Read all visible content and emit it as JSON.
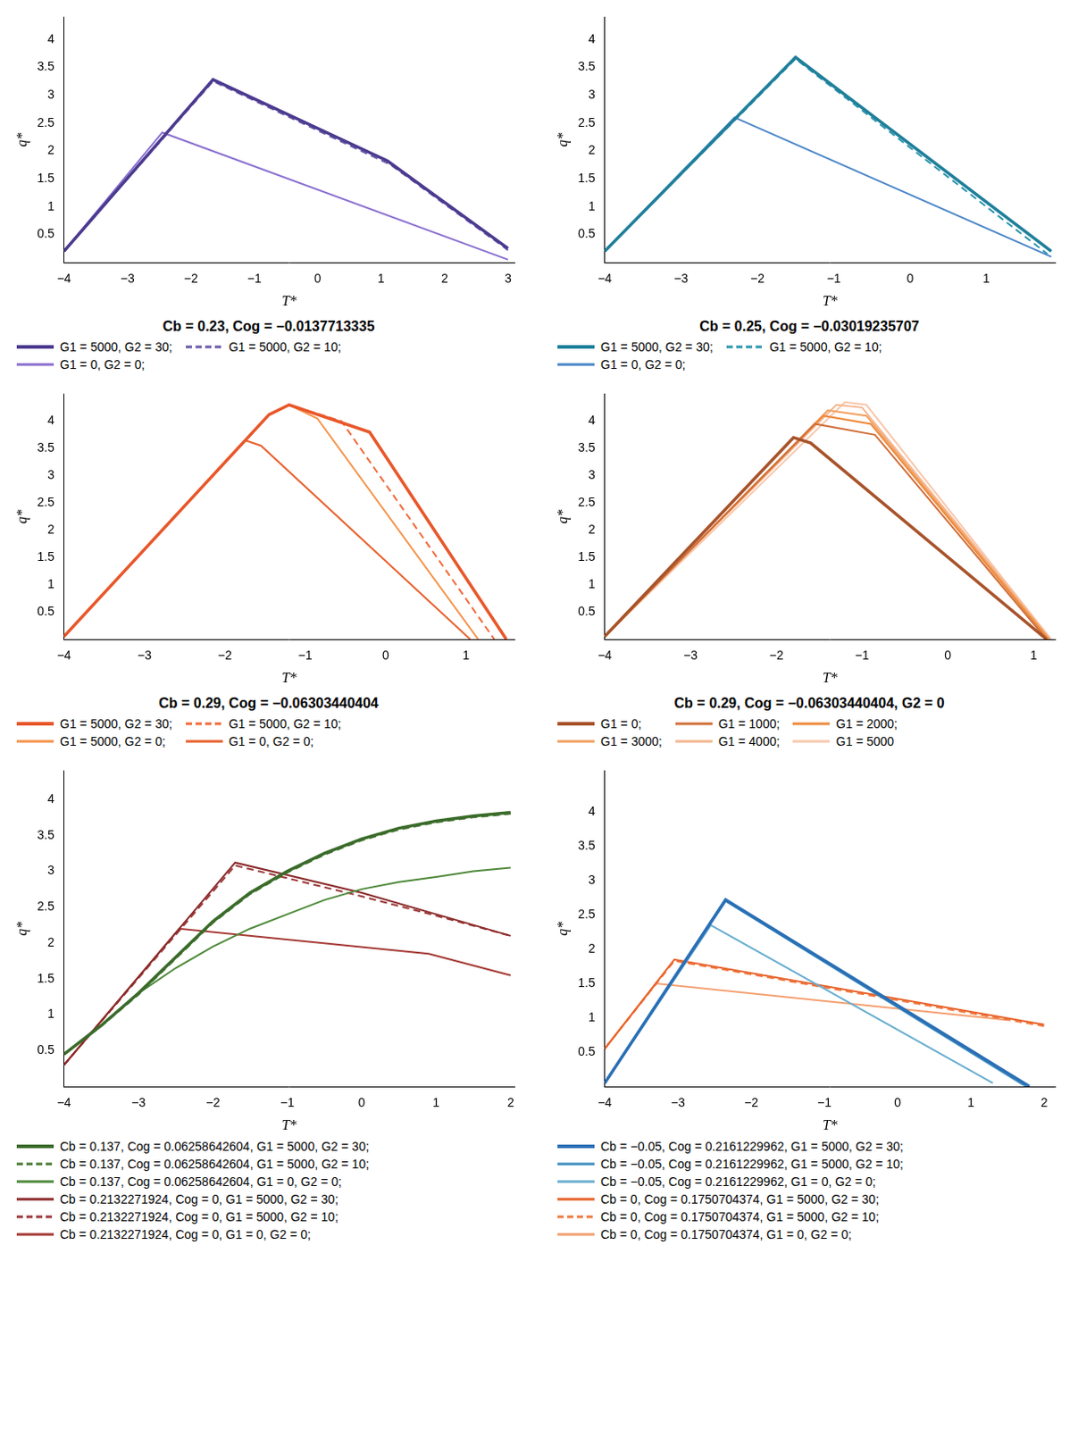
{
  "chart_data": [
    {
      "type": "line",
      "title": "Cb = 0.23, Cog = −0.0137713335",
      "x_label": "T*",
      "y_label": "q*",
      "xlim": [
        -4,
        3.1
      ],
      "xticks": [
        {
          "value": -4,
          "label": "−4"
        },
        {
          "value": -3,
          "label": "−3"
        },
        {
          "value": -2,
          "label": "−2"
        },
        {
          "value": -1,
          "label": "−1"
        },
        0,
        1,
        2,
        3
      ],
      "ylim": [
        0,
        4.4
      ],
      "yticks": [
        0.5,
        1,
        1.5,
        2,
        2.5,
        3,
        3.5,
        4
      ],
      "grid": false,
      "legend": "bottom",
      "series": [
        {
          "name": "G1 = 5000, G2 = 30;",
          "color": "#4b3a8f",
          "line_style": "solid",
          "x": [
            -4,
            -1.65,
            1.1,
            3
          ],
          "values": [
            0.2,
            3.28,
            1.82,
            0.25
          ]
        },
        {
          "name": "G1 = 5000, G2 = 10;",
          "color": "#6a58a8",
          "line_style": "dashed",
          "x": [
            -4,
            -1.65,
            1.15,
            3
          ],
          "values": [
            0.2,
            3.25,
            1.75,
            0.22
          ]
        },
        {
          "name": "G1 = 0, G2 = 0;",
          "color": "#8a6fd0",
          "line_style": "solid",
          "x": [
            -4,
            -2.45,
            3
          ],
          "values": [
            0.2,
            2.33,
            0.05
          ]
        }
      ]
    },
    {
      "type": "line",
      "title": "Cb = 0.25, Cog = −0.03019235707",
      "x_label": "T*",
      "y_label": "q*",
      "xlim": [
        -4,
        1.9
      ],
      "xticks": [
        {
          "value": -4,
          "label": "−4"
        },
        {
          "value": -3,
          "label": "−3"
        },
        {
          "value": -2,
          "label": "−2"
        },
        {
          "value": -1,
          "label": "−1"
        },
        0,
        1
      ],
      "ylim": [
        0,
        4.4
      ],
      "yticks": [
        0.5,
        1,
        1.5,
        2,
        2.5,
        3,
        3.5,
        4
      ],
      "grid": false,
      "legend": "bottom",
      "series": [
        {
          "name": "G1 = 5000, G2 = 30;",
          "color": "#1f7f9a",
          "line_style": "solid",
          "x": [
            -4,
            -1.5,
            1.85
          ],
          "values": [
            0.2,
            3.68,
            0.2
          ]
        },
        {
          "name": "G1 = 5000, G2 = 10;",
          "color": "#2a95ad",
          "line_style": "dashed",
          "x": [
            -4,
            -1.5,
            1.8
          ],
          "values": [
            0.2,
            3.65,
            0.15
          ]
        },
        {
          "name": "G1 = 0, G2 = 0;",
          "color": "#4a86c8",
          "line_style": "solid",
          "x": [
            -4,
            -2.3,
            1.85
          ],
          "values": [
            0.2,
            2.6,
            0.1
          ]
        }
      ]
    },
    {
      "type": "line",
      "title": "Cb = 0.29, Cog = −0.06303440404",
      "x_label": "T*",
      "y_label": "q*",
      "xlim": [
        -4,
        1.6
      ],
      "xticks": [
        {
          "value": -4,
          "label": "−4"
        },
        {
          "value": -3,
          "label": "−3"
        },
        {
          "value": -2,
          "label": "−2"
        },
        {
          "value": -1,
          "label": "−1"
        },
        0,
        1
      ],
      "ylim": [
        0,
        4.5
      ],
      "yticks": [
        0.5,
        1,
        1.5,
        2,
        2.5,
        3,
        3.5,
        4
      ],
      "grid": false,
      "legend": "bottom",
      "series": [
        {
          "name": "G1 = 5000, G2 = 30;",
          "color": "#e8572a",
          "line_style": "solid",
          "x": [
            -4,
            -1.45,
            -1.2,
            -0.2,
            1.5
          ],
          "values": [
            0.05,
            4.12,
            4.3,
            3.8,
            0
          ]
        },
        {
          "name": "G1 = 5000, G2 = 10;",
          "color": "#f06a3a",
          "line_style": "dashed",
          "x": [
            -4,
            -1.45,
            -1.2,
            -0.55,
            1.35
          ],
          "values": [
            0.05,
            4.12,
            4.3,
            4.0,
            0
          ]
        },
        {
          "name": "G1 = 5000, G2 = 0;",
          "color": "#f5934a",
          "line_style": "solid",
          "x": [
            -4,
            -1.45,
            -1.2,
            -0.85,
            1.15
          ],
          "values": [
            0.05,
            4.12,
            4.3,
            4.05,
            0
          ]
        },
        {
          "name": "G1 = 0, G2 = 0;",
          "color": "#e8622f",
          "line_style": "solid",
          "x": [
            -4,
            -1.75,
            -1.55,
            1.05
          ],
          "values": [
            0.05,
            3.65,
            3.55,
            0
          ]
        }
      ]
    },
    {
      "type": "line",
      "title": "Cb = 0.29, Cog = −0.06303440404, G2 = 0",
      "x_label": "T*",
      "y_label": "q*",
      "xlim": [
        -4,
        1.25
      ],
      "xticks": [
        {
          "value": -4,
          "label": "−4"
        },
        {
          "value": -3,
          "label": "−3"
        },
        {
          "value": -2,
          "label": "−2"
        },
        {
          "value": -1,
          "label": "−1"
        },
        0,
        1
      ],
      "ylim": [
        0,
        4.5
      ],
      "yticks": [
        0.5,
        1,
        1.5,
        2,
        2.5,
        3,
        3.5,
        4
      ],
      "grid": false,
      "legend": "bottom",
      "series": [
        {
          "name": "G1 = 0;",
          "color": "#a8532a",
          "line_style": "solid",
          "x": [
            -4,
            -1.8,
            -1.6,
            1.15
          ],
          "values": [
            0.05,
            3.7,
            3.6,
            0
          ]
        },
        {
          "name": "G1 = 1000;",
          "color": "#d0703a",
          "line_style": "solid",
          "x": [
            -4,
            -1.55,
            -0.85,
            1.15
          ],
          "values": [
            0.05,
            3.95,
            3.75,
            0
          ]
        },
        {
          "name": "G1 = 2000;",
          "color": "#ee8a3c",
          "line_style": "solid",
          "x": [
            -4,
            -1.45,
            -0.9,
            1.17
          ],
          "values": [
            0.05,
            4.1,
            3.95,
            0
          ]
        },
        {
          "name": "G1 = 3000;",
          "color": "#f0a060",
          "line_style": "solid",
          "x": [
            -4,
            -1.4,
            -0.95,
            1.18
          ],
          "values": [
            0.05,
            4.2,
            4.1,
            0
          ]
        },
        {
          "name": "G1 = 4000;",
          "color": "#f5b690",
          "line_style": "solid",
          "x": [
            -4,
            -1.3,
            -1.0,
            1.2
          ],
          "values": [
            0.05,
            4.3,
            4.25,
            0
          ]
        },
        {
          "name": "G1 = 5000",
          "color": "#f8c8ad",
          "line_style": "solid",
          "x": [
            -4,
            -1.2,
            -0.95,
            1.2
          ],
          "values": [
            0.05,
            4.35,
            4.3,
            0
          ]
        }
      ]
    },
    {
      "type": "line",
      "x_label": "T*",
      "y_label": "q*",
      "xlim": [
        -4,
        2.05
      ],
      "xticks": [
        {
          "value": -4,
          "label": "−4"
        },
        {
          "value": -3,
          "label": "−3"
        },
        {
          "value": -2,
          "label": "−2"
        },
        {
          "value": -1,
          "label": "−1"
        },
        0,
        1,
        2
      ],
      "ylim": [
        0,
        4.4
      ],
      "yticks": [
        0.5,
        1,
        1.5,
        2,
        2.5,
        3,
        3.5,
        4
      ],
      "grid": false,
      "legend": "bottom",
      "series": [
        {
          "name": "Cb = 0.137, Cog = 0.06258642604, G1 = 5000, G2 = 30;",
          "color": "#3a6b2a",
          "line_style": "solid",
          "x": [
            -4,
            -3.5,
            -3,
            -2.5,
            -2,
            -1.5,
            -1,
            -0.5,
            0,
            0.5,
            1,
            1.5,
            2
          ],
          "values": [
            0.45,
            0.85,
            1.3,
            1.8,
            2.3,
            2.7,
            3.0,
            3.25,
            3.45,
            3.6,
            3.7,
            3.77,
            3.82
          ]
        },
        {
          "name": "Cb = 0.137, Cog = 0.06258642604, G1 = 5000, G2 = 10;",
          "color": "#4a7a35",
          "line_style": "dashed",
          "x": [
            -4,
            -3.5,
            -3,
            -2.5,
            -2,
            -1.5,
            -1,
            -0.5,
            0,
            0.5,
            1,
            1.5,
            2
          ],
          "values": [
            0.45,
            0.84,
            1.28,
            1.78,
            2.28,
            2.68,
            2.98,
            3.23,
            3.43,
            3.58,
            3.68,
            3.75,
            3.8
          ]
        },
        {
          "name": "Cb = 0.137, Cog = 0.06258642604, G1 = 0, G2 = 0;",
          "color": "#4f8a3a",
          "line_style": "solid",
          "x": [
            -4,
            -3.5,
            -3,
            -2.5,
            -2,
            -1.5,
            -1,
            -0.5,
            0,
            0.5,
            1,
            1.5,
            2
          ],
          "values": [
            0.45,
            0.85,
            1.3,
            1.65,
            1.95,
            2.2,
            2.4,
            2.6,
            2.75,
            2.85,
            2.92,
            3.0,
            3.05
          ]
        },
        {
          "name": "Cb = 0.2132271924, Cog = 0, G1 = 5000, G2 = 30;",
          "color": "#8b2a2a",
          "line_style": "solid",
          "x": [
            -4,
            -1.7,
            0,
            1,
            2
          ],
          "values": [
            0.3,
            3.12,
            2.7,
            2.4,
            2.1
          ]
        },
        {
          "name": "Cb = 0.2132271924, Cog = 0, G1 = 5000, G2 = 10;",
          "color": "#9c3a3a",
          "line_style": "dashed",
          "x": [
            -4,
            -1.7,
            0,
            1,
            2
          ],
          "values": [
            0.3,
            3.08,
            2.65,
            2.38,
            2.1
          ]
        },
        {
          "name": "Cb = 0.2132271924, Cog = 0, G1 = 0, G2 = 0;",
          "color": "#a53a35",
          "line_style": "solid",
          "x": [
            -4,
            -2.45,
            0.9,
            2
          ],
          "values": [
            0.3,
            2.2,
            1.85,
            1.55
          ]
        }
      ]
    },
    {
      "type": "line",
      "x_label": "T*",
      "y_label": "q*",
      "xlim": [
        -4,
        2.15
      ],
      "xticks": [
        {
          "value": -4,
          "label": "−4"
        },
        {
          "value": -3,
          "label": "−3"
        },
        {
          "value": -2,
          "label": "−2"
        },
        {
          "value": -1,
          "label": "−1"
        },
        0,
        1,
        2
      ],
      "ylim": [
        0,
        4.6
      ],
      "yticks": [
        0.5,
        1,
        1.5,
        2,
        2.5,
        3,
        3.5,
        4
      ],
      "grid": false,
      "legend": "bottom",
      "series": [
        {
          "name": "Cb = −0.05, Cog = 0.2161229962, G1 = 5000, G2 = 30;",
          "color": "#2a6fb5",
          "line_style": "solid",
          "x": [
            -4,
            -2.35,
            1.8
          ],
          "values": [
            0.05,
            2.72,
            0
          ]
        },
        {
          "name": "Cb = −0.05, Cog = 0.2161229962, G1 = 5000, G2 = 10;",
          "color": "#3f8fc0",
          "line_style": "solid",
          "x": [
            -4,
            -2.35,
            1.75
          ],
          "values": [
            0.05,
            2.7,
            0
          ]
        },
        {
          "name": "Cb = −0.05, Cog = 0.2161229962, G1 = 0, G2 = 0;",
          "color": "#6aaed0",
          "line_style": "solid",
          "x": [
            -4,
            -2.55,
            1.3
          ],
          "values": [
            0.05,
            2.35,
            0.05
          ]
        },
        {
          "name": "Cb = 0, Cog = 0.1750704374, G1 = 5000, G2 = 30;",
          "color": "#e8622a",
          "line_style": "solid",
          "x": [
            -4,
            -3.05,
            2
          ],
          "values": [
            0.55,
            1.85,
            0.9
          ]
        },
        {
          "name": "Cb = 0, Cog = 0.1750704374, G1 = 5000, G2 = 10;",
          "color": "#f07a40",
          "line_style": "dashed",
          "x": [
            -4,
            -3.05,
            2
          ],
          "values": [
            0.55,
            1.83,
            0.88
          ]
        },
        {
          "name": "Cb = 0, Cog = 0.1750704374, G1 = 0, G2 = 0;",
          "color": "#f5a070",
          "line_style": "solid",
          "x": [
            -4,
            -3.3,
            1.5
          ],
          "values": [
            0.55,
            1.5,
            0.97
          ]
        }
      ]
    }
  ]
}
